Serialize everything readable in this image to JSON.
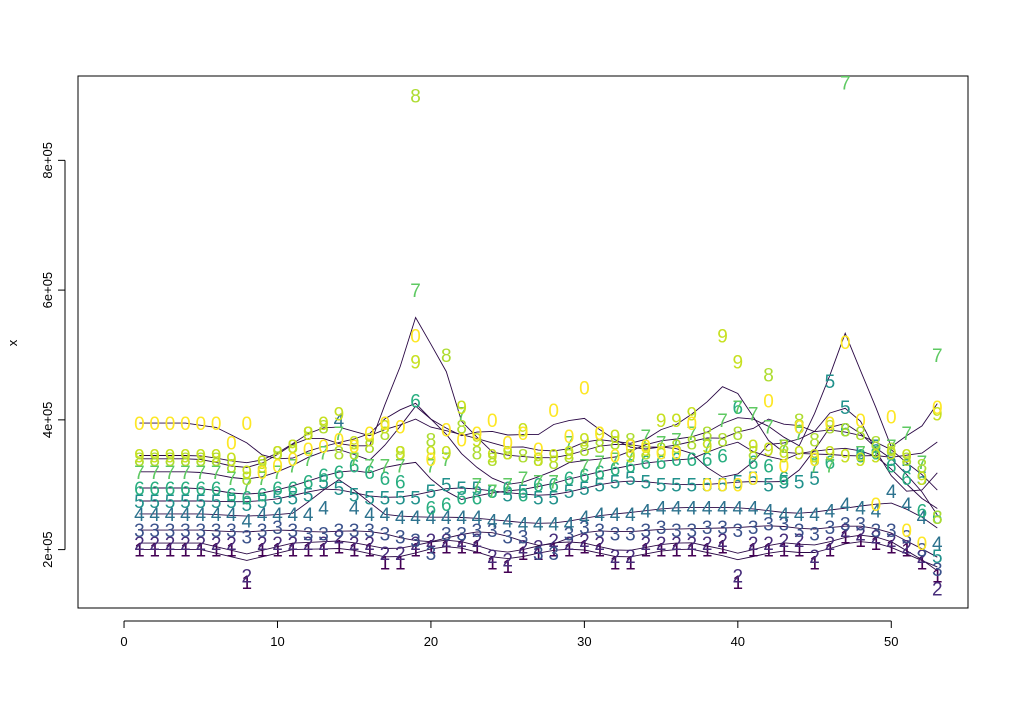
{
  "chart_data": {
    "type": "line",
    "title": "",
    "xlabel": "",
    "ylabel": "x",
    "xlim": [
      -3,
      55
    ],
    "ylim": [
      110000,
      930000
    ],
    "x_ticks": [
      0,
      10,
      20,
      30,
      40,
      50
    ],
    "x_tick_labels": [
      "0",
      "10",
      "20",
      "30",
      "40",
      "50"
    ],
    "y_ticks": [
      200000,
      400000,
      600000,
      800000
    ],
    "y_tick_labels": [
      "2e+05",
      "4e+05",
      "6e+05",
      "8e+05"
    ],
    "grid": false,
    "legend": "none",
    "marker": "point labels 1,2,...,9,0 (series digit)",
    "series": [
      {
        "name": "1",
        "color": "#440154",
        "values": [
          200000,
          200000,
          200000,
          200000,
          200000,
          200000,
          200000,
          150000,
          200000,
          200000,
          200000,
          200000,
          200000,
          205000,
          200000,
          200000,
          180000,
          180000,
          200000,
          205000,
          205000,
          205000,
          205000,
          180000,
          175000,
          195000,
          195000,
          200000,
          200000,
          205000,
          200000,
          180000,
          180000,
          200000,
          200000,
          200000,
          200000,
          200000,
          205000,
          150000,
          200000,
          200000,
          200000,
          200000,
          180000,
          200000,
          220000,
          215000,
          210000,
          205000,
          200000,
          180000,
          160000
        ]
      },
      {
        "name": "2",
        "color": "#472D7B",
        "values": [
          210000,
          210000,
          210000,
          210000,
          210000,
          210000,
          210000,
          160000,
          210000,
          210000,
          210000,
          210000,
          210000,
          220000,
          210000,
          210000,
          195000,
          195000,
          210000,
          215000,
          215000,
          215000,
          215000,
          190000,
          185000,
          205000,
          205000,
          215000,
          210000,
          215000,
          210000,
          190000,
          190000,
          210000,
          210000,
          210000,
          210000,
          210000,
          215000,
          160000,
          210000,
          210000,
          215000,
          215000,
          190000,
          210000,
          230000,
          225000,
          220000,
          215000,
          205000,
          190000,
          140000
        ]
      },
      {
        "name": "3",
        "color": "#3B528B",
        "values": [
          230000,
          230000,
          230000,
          230000,
          230000,
          230000,
          230000,
          220000,
          230000,
          235000,
          230000,
          225000,
          225000,
          230000,
          230000,
          230000,
          225000,
          220000,
          215000,
          195000,
          225000,
          225000,
          230000,
          230000,
          220000,
          220000,
          195000,
          195000,
          225000,
          235000,
          230000,
          225000,
          225000,
          230000,
          235000,
          230000,
          230000,
          235000,
          235000,
          230000,
          235000,
          240000,
          240000,
          230000,
          225000,
          235000,
          240000,
          240000,
          230000,
          230000,
          220000,
          200000,
          170000
        ]
      },
      {
        "name": "4",
        "color": "#2C728E",
        "values": [
          255000,
          255000,
          255000,
          255000,
          255000,
          255000,
          255000,
          245000,
          255000,
          255000,
          255000,
          255000,
          265000,
          400000,
          265000,
          255000,
          255000,
          250000,
          250000,
          250000,
          250000,
          250000,
          250000,
          245000,
          245000,
          240000,
          240000,
          240000,
          240000,
          250000,
          255000,
          255000,
          255000,
          260000,
          265000,
          265000,
          265000,
          265000,
          265000,
          265000,
          265000,
          260000,
          255000,
          255000,
          255000,
          260000,
          270000,
          265000,
          260000,
          290000,
          270000,
          250000,
          210000
        ]
      },
      {
        "name": "5",
        "color": "#21918C",
        "values": [
          275000,
          275000,
          275000,
          275000,
          275000,
          275000,
          275000,
          270000,
          275000,
          280000,
          280000,
          285000,
          305000,
          295000,
          285000,
          280000,
          280000,
          280000,
          280000,
          290000,
          300000,
          295000,
          295000,
          290000,
          285000,
          290000,
          280000,
          280000,
          290000,
          295000,
          300000,
          305000,
          310000,
          305000,
          300000,
          300000,
          300000,
          300000,
          300000,
          305000,
          310000,
          300000,
          305000,
          305000,
          310000,
          460000,
          420000,
          350000,
          360000,
          340000,
          330000,
          310000,
          190000
        ]
      },
      {
        "name": "6",
        "color": "#28AE80",
        "values": [
          295000,
          295000,
          295000,
          295000,
          295000,
          295000,
          285000,
          280000,
          285000,
          295000,
          295000,
          305000,
          315000,
          320000,
          330000,
          320000,
          310000,
          305000,
          430000,
          265000,
          270000,
          280000,
          280000,
          290000,
          295000,
          285000,
          300000,
          300000,
          310000,
          315000,
          320000,
          325000,
          330000,
          335000,
          335000,
          340000,
          340000,
          340000,
          345000,
          420000,
          335000,
          330000,
          310000,
          390000,
          340000,
          335000,
          385000,
          345000,
          350000,
          330000,
          310000,
          260000,
          250000
        ]
      },
      {
        "name": "7",
        "color": "#5EC962",
        "values": [
          320000,
          320000,
          320000,
          320000,
          320000,
          320000,
          310000,
          300000,
          310000,
          320000,
          330000,
          340000,
          350000,
          380000,
          340000,
          330000,
          330000,
          330000,
          600000,
          330000,
          340000,
          410000,
          300000,
          290000,
          300000,
          310000,
          305000,
          305000,
          365000,
          330000,
          335000,
          340000,
          345000,
          375000,
          365000,
          370000,
          380000,
          360000,
          400000,
          420000,
          410000,
          390000,
          360000,
          380000,
          330000,
          330000,
          920000,
          350000,
          350000,
          360000,
          380000,
          335000,
          500000
        ]
      },
      {
        "name": "8",
        "color": "#ADDC30",
        "values": [
          340000,
          340000,
          340000,
          340000,
          340000,
          340000,
          330000,
          310000,
          330000,
          350000,
          360000,
          380000,
          390000,
          350000,
          350000,
          360000,
          380000,
          350000,
          900000,
          370000,
          500000,
          390000,
          350000,
          340000,
          350000,
          345000,
          340000,
          335000,
          345000,
          355000,
          360000,
          365000,
          370000,
          350000,
          355000,
          360000,
          365000,
          380000,
          370000,
          380000,
          350000,
          470000,
          360000,
          400000,
          370000,
          390000,
          385000,
          380000,
          365000,
          355000,
          340000,
          330000,
          250000
        ]
      },
      {
        "name": "9",
        "color": "#C7E020",
        "values": [
          345000,
          345000,
          345000,
          345000,
          345000,
          345000,
          340000,
          320000,
          335000,
          350000,
          360000,
          380000,
          395000,
          410000,
          365000,
          370000,
          390000,
          350000,
          490000,
          350000,
          350000,
          420000,
          370000,
          345000,
          350000,
          385000,
          340000,
          345000,
          350000,
          370000,
          380000,
          375000,
          345000,
          355000,
          400000,
          400000,
          410000,
          360000,
          530000,
          490000,
          360000,
          355000,
          345000,
          350000,
          345000,
          350000,
          345000,
          340000,
          345000,
          350000,
          345000,
          310000,
          410000
        ]
      },
      {
        "name": "0",
        "color": "#FDE725",
        "values": [
          395000,
          395000,
          395000,
          395000,
          395000,
          395000,
          365000,
          395000,
          320000,
          330000,
          340000,
          355000,
          360000,
          370000,
          360000,
          380000,
          395000,
          390000,
          530000,
          340000,
          385000,
          370000,
          380000,
          400000,
          365000,
          380000,
          355000,
          415000,
          375000,
          450000,
          380000,
          345000,
          360000,
          360000,
          350000,
          350000,
          395000,
          300000,
          300000,
          300000,
          310000,
          430000,
          330000,
          390000,
          340000,
          395000,
          520000,
          400000,
          270000,
          405000,
          230000,
          210000,
          420000
        ]
      }
    ]
  }
}
